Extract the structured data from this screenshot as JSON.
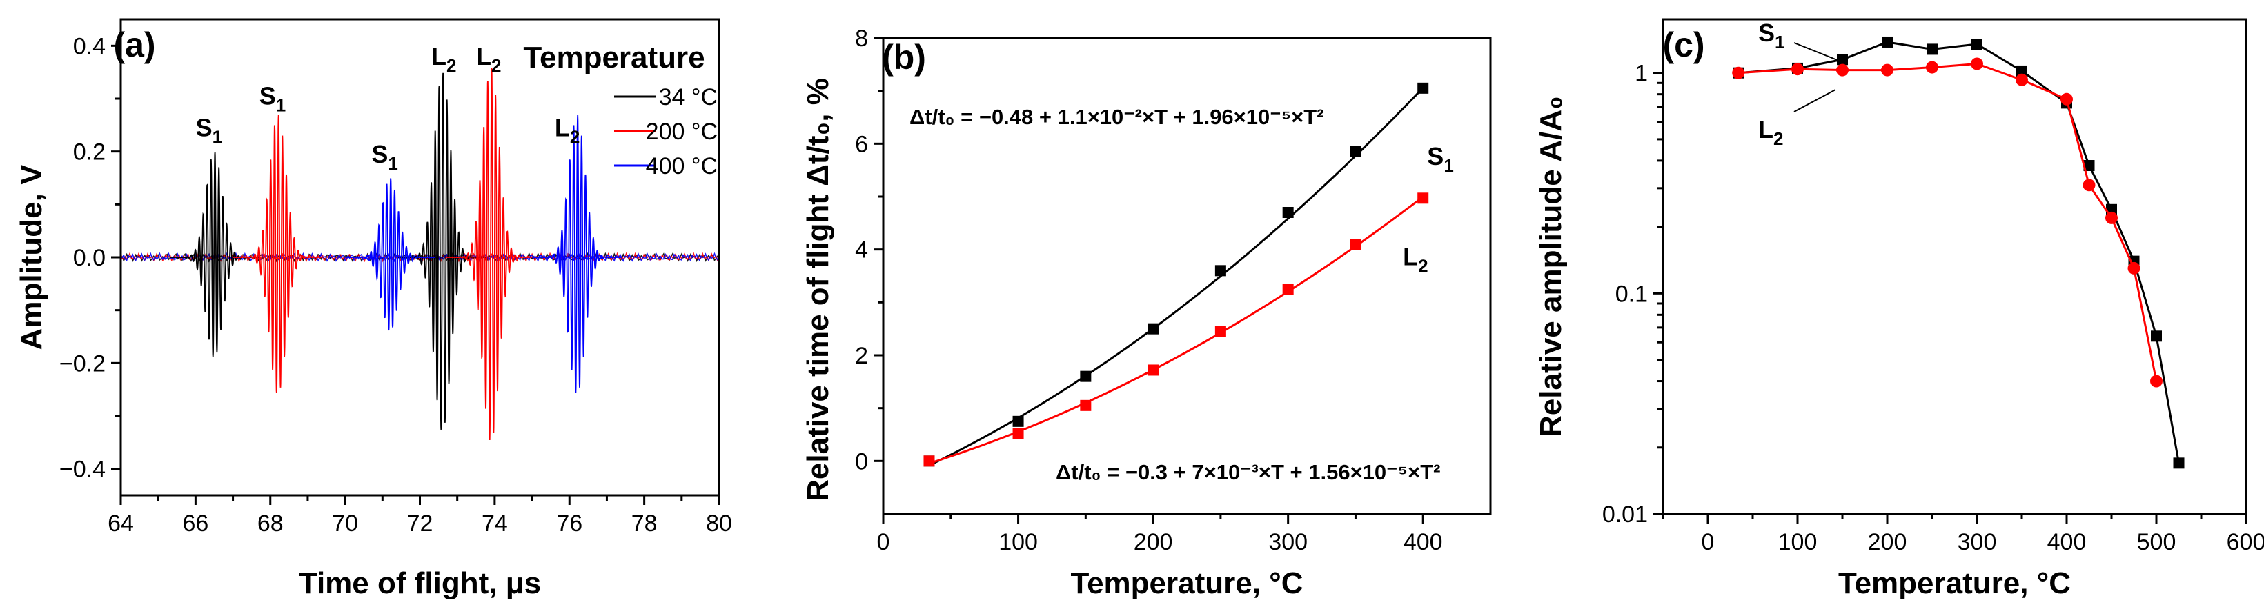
{
  "chart_data": [
    {
      "type": "line",
      "panel": "(a)",
      "xlabel": "Time of flight, μs",
      "ylabel": "Amplitude, V",
      "xlim": [
        64,
        80
      ],
      "ylim": [
        -0.45,
        0.45
      ],
      "xticks": [
        64,
        66,
        68,
        70,
        72,
        74,
        76,
        78,
        80
      ],
      "yticks": [
        -0.4,
        -0.2,
        0.0,
        0.2,
        0.4
      ],
      "ytick_labels": [
        "−0.4",
        "−0.2",
        "0.0",
        "0.2",
        "0.4"
      ],
      "legend": {
        "title": "Temperature",
        "position": "top-right"
      },
      "series": [
        {
          "name": "34 °C",
          "color": "#000000",
          "packets": [
            {
              "label": "S1",
              "center": 66.5,
              "amp": 0.2,
              "neg": 0.19
            },
            {
              "label": "L2",
              "center": 72.6,
              "amp": 0.35,
              "neg": 0.33
            }
          ]
        },
        {
          "name": "200 °C",
          "color": "#ff0000",
          "packets": [
            {
              "label": "S1",
              "center": 68.2,
              "amp": 0.27,
              "neg": 0.26
            },
            {
              "label": "L2",
              "center": 73.9,
              "amp": 0.36,
              "neg": 0.35
            }
          ]
        },
        {
          "name": "400 °C",
          "color": "#0000ff",
          "packets": [
            {
              "label": "S1",
              "center": 71.2,
              "amp": 0.15,
              "neg": 0.14
            },
            {
              "label": "L2",
              "center": 76.2,
              "amp": 0.27,
              "neg": 0.26
            }
          ]
        }
      ],
      "annotations": [
        {
          "base": "S",
          "sub": "1",
          "x": 66.3,
          "y": 0.2
        },
        {
          "base": "S",
          "sub": "1",
          "x": 68.0,
          "y": 0.26
        },
        {
          "base": "S",
          "sub": "1",
          "x": 71.0,
          "y": 0.15
        },
        {
          "base": "L",
          "sub": "2",
          "x": 72.6,
          "y": 0.335
        },
        {
          "base": "L",
          "sub": "2",
          "x": 73.8,
          "y": 0.335
        },
        {
          "base": "L",
          "sub": "2",
          "x": 75.9,
          "y": 0.2
        }
      ]
    },
    {
      "type": "line",
      "panel": "(b)",
      "xlabel": "Temperature, °C",
      "ylabel": "Relative time of flight Δt/t₀, %",
      "xlim": [
        0,
        450
      ],
      "ylim": [
        -1,
        8
      ],
      "xticks": [
        0,
        100,
        200,
        300,
        400
      ],
      "yticks": [
        0,
        2,
        4,
        6,
        8
      ],
      "series": [
        {
          "name": "S1",
          "color": "#000000",
          "x": [
            34,
            100,
            150,
            200,
            250,
            300,
            350,
            400
          ],
          "y": [
            0,
            0.75,
            1.6,
            2.5,
            3.6,
            4.7,
            5.85,
            7.05
          ],
          "fit": [
            -0.48,
            0.011,
            1.96e-05
          ]
        },
        {
          "name": "L2",
          "color": "#ff0000",
          "x": [
            34,
            100,
            150,
            200,
            250,
            300,
            350,
            400
          ],
          "y": [
            0,
            0.52,
            1.05,
            1.72,
            2.45,
            3.25,
            4.1,
            4.97
          ],
          "fit": [
            -0.3,
            0.007,
            1.56e-05
          ]
        }
      ],
      "equations": [
        "Δt/t₀ = −0.48 + 1.1×10⁻²×T + 1.96×10⁻⁵×T²",
        "Δt/t₀ = −0.3 + 7×10⁻³×T + 1.56×10⁻⁵×T²"
      ],
      "series_labels": [
        {
          "base": "S",
          "sub": "1",
          "x": 398,
          "y": 5.6
        },
        {
          "base": "L",
          "sub": "2",
          "x": 380,
          "y": 3.7
        }
      ]
    },
    {
      "type": "line",
      "panel": "(c)",
      "xlabel": "Temperature, °C",
      "ylabel": "Relative amplitude A/A₀",
      "xlim": [
        -50,
        600
      ],
      "ylim": [
        0.01,
        1.75
      ],
      "yscale": "log",
      "xticks": [
        0,
        100,
        200,
        300,
        400,
        500,
        600
      ],
      "yticks": [
        0.01,
        0.1,
        1
      ],
      "ytick_labels": [
        "0.01",
        "0.1",
        "1"
      ],
      "series": [
        {
          "name": "S1",
          "color": "#000000",
          "x": [
            34,
            100,
            150,
            200,
            250,
            300,
            350,
            400,
            425,
            450,
            475,
            500,
            525
          ],
          "y": [
            1.0,
            1.05,
            1.15,
            1.38,
            1.28,
            1.35,
            1.02,
            0.73,
            0.38,
            0.24,
            0.14,
            0.064,
            0.017
          ]
        },
        {
          "name": "L2",
          "color": "#ff0000",
          "x": [
            34,
            100,
            150,
            200,
            250,
            300,
            350,
            400,
            425,
            450,
            475,
            500
          ],
          "y": [
            1.0,
            1.04,
            1.03,
            1.03,
            1.06,
            1.1,
            0.93,
            0.76,
            0.31,
            0.22,
            0.13,
            0.04
          ]
        }
      ],
      "series_labels": [
        {
          "base": "S",
          "sub": "1",
          "x": 95,
          "y": 1.82
        },
        {
          "base": "L",
          "sub": "2",
          "x": 95,
          "y": 0.58
        }
      ]
    }
  ]
}
